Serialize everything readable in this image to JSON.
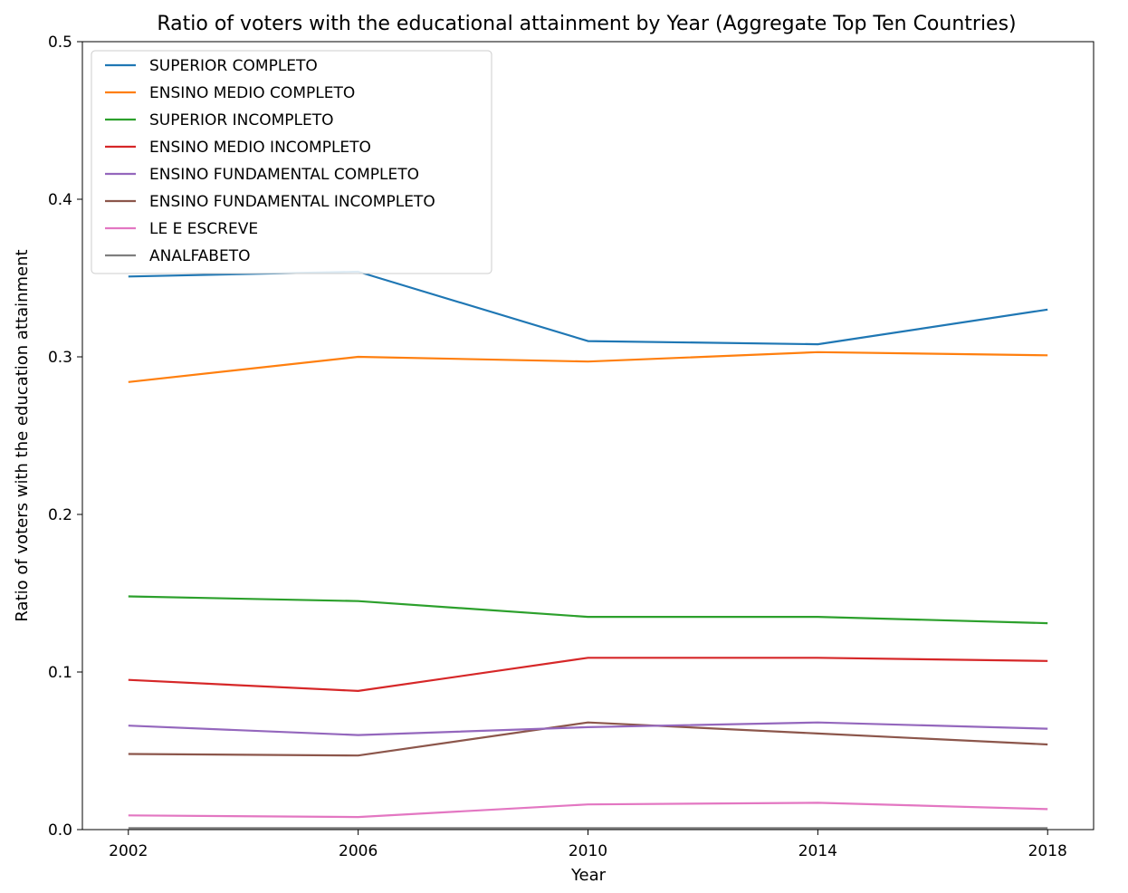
{
  "chart_data": {
    "type": "line",
    "title": "Ratio of voters with the educational attainment by Year (Aggregate Top Ten Countries)",
    "xlabel": "Year",
    "ylabel": "Ratio of voters with the education attainment",
    "x": [
      2002,
      2006,
      2010,
      2014,
      2018
    ],
    "x_tick_labels": [
      "2002",
      "2006",
      "2010",
      "2014",
      "2018"
    ],
    "xlim": [
      2001.2,
      2018.8
    ],
    "ylim": [
      0.0,
      0.5
    ],
    "y_ticks": [
      0.0,
      0.1,
      0.2,
      0.3,
      0.4,
      0.5
    ],
    "y_tick_labels": [
      "0.0",
      "0.1",
      "0.2",
      "0.3",
      "0.4",
      "0.5"
    ],
    "grid": false,
    "legend_position": "top-left",
    "series": [
      {
        "name": "SUPERIOR COMPLETO",
        "color": "#1f77b4",
        "values": [
          0.351,
          0.354,
          0.31,
          0.308,
          0.33
        ]
      },
      {
        "name": "ENSINO MEDIO COMPLETO",
        "color": "#ff7f0e",
        "values": [
          0.284,
          0.3,
          0.297,
          0.303,
          0.301
        ]
      },
      {
        "name": "SUPERIOR INCOMPLETO",
        "color": "#2ca02c",
        "values": [
          0.148,
          0.145,
          0.135,
          0.135,
          0.131
        ]
      },
      {
        "name": "ENSINO MEDIO INCOMPLETO",
        "color": "#d62728",
        "values": [
          0.095,
          0.088,
          0.109,
          0.109,
          0.107
        ]
      },
      {
        "name": "ENSINO FUNDAMENTAL COMPLETO",
        "color": "#9467bd",
        "values": [
          0.066,
          0.06,
          0.065,
          0.068,
          0.064
        ]
      },
      {
        "name": "ENSINO FUNDAMENTAL INCOMPLETO",
        "color": "#8c564b",
        "values": [
          0.048,
          0.047,
          0.068,
          0.061,
          0.054
        ]
      },
      {
        "name": "LE E ESCREVE",
        "color": "#e377c2",
        "values": [
          0.009,
          0.008,
          0.016,
          0.017,
          0.013
        ]
      },
      {
        "name": "ANALFABETO",
        "color": "#7f7f7f",
        "values": [
          0.001,
          0.001,
          0.001,
          0.001,
          0.001
        ]
      }
    ]
  }
}
